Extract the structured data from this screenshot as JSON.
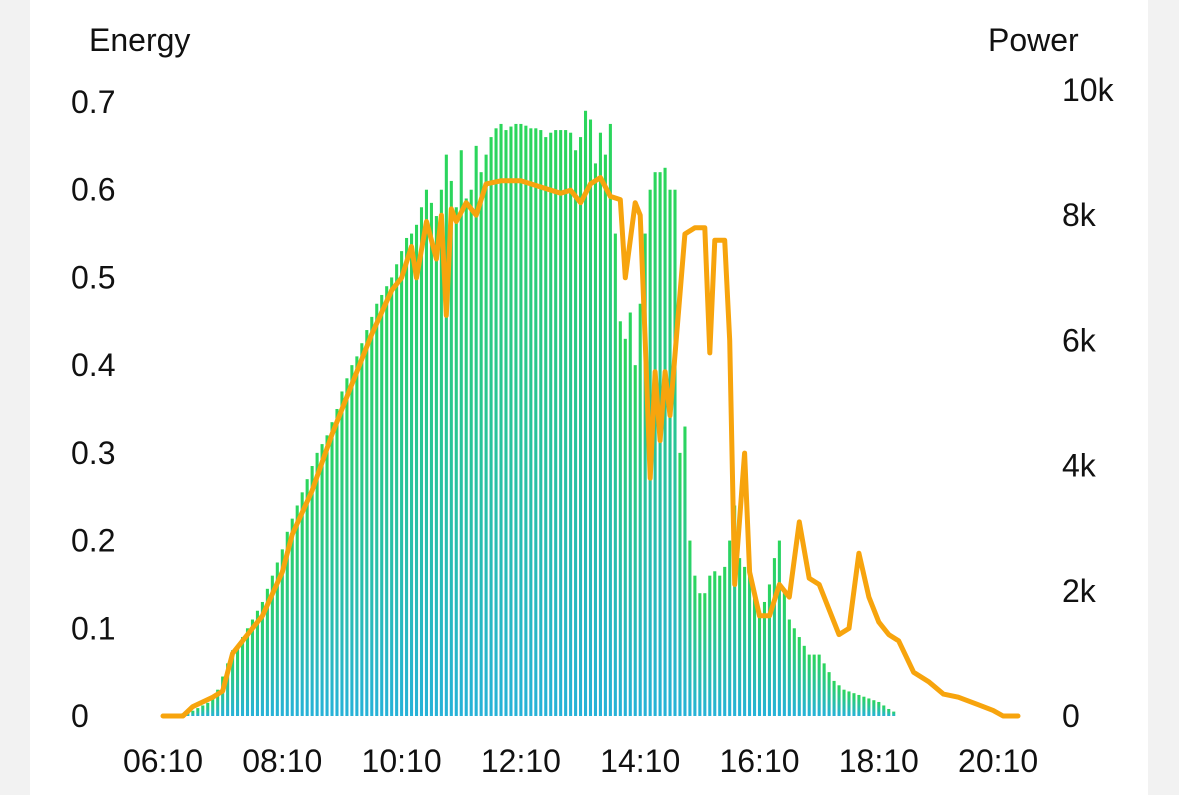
{
  "chart_data": {
    "type": "bar+line",
    "title": "",
    "left_axis_title": "Energy",
    "right_axis_title": "Power",
    "x_ticks": [
      "06:10",
      "08:10",
      "10:10",
      "12:10",
      "14:10",
      "16:10",
      "18:10",
      "20:10"
    ],
    "left_ticks": [
      "0",
      "0.1",
      "0.2",
      "0.3",
      "0.4",
      "0.5",
      "0.6",
      "0.7"
    ],
    "right_ticks": [
      "0",
      "2k",
      "4k",
      "6k",
      "8k",
      "10k"
    ],
    "left_ylim": [
      0,
      0.7
    ],
    "right_ylim": [
      0,
      10000
    ],
    "x_range_minutes": [
      370,
      1230
    ],
    "colors": {
      "bar_top": "#2bd65a",
      "bar_bottom": "#27b2d8",
      "line": "#f7a40d",
      "text": "#111111"
    },
    "series": [
      {
        "kind": "bars",
        "axis": "left",
        "interval_minutes": 5,
        "x_start": "06:10",
        "values": [
          0,
          0,
          0,
          0,
          0.003,
          0.004,
          0.006,
          0.009,
          0.012,
          0.015,
          0.02,
          0.03,
          0.045,
          0.06,
          0.075,
          0.08,
          0.09,
          0.1,
          0.11,
          0.12,
          0.13,
          0.145,
          0.16,
          0.175,
          0.19,
          0.21,
          0.225,
          0.24,
          0.255,
          0.27,
          0.285,
          0.3,
          0.31,
          0.32,
          0.335,
          0.35,
          0.37,
          0.385,
          0.4,
          0.41,
          0.425,
          0.44,
          0.455,
          0.47,
          0.48,
          0.49,
          0.5,
          0.515,
          0.53,
          0.545,
          0.55,
          0.56,
          0.58,
          0.6,
          0.585,
          0.57,
          0.6,
          0.64,
          0.61,
          0.58,
          0.645,
          0.59,
          0.6,
          0.65,
          0.62,
          0.64,
          0.66,
          0.67,
          0.675,
          0.668,
          0.672,
          0.675,
          0.675,
          0.673,
          0.67,
          0.67,
          0.668,
          0.66,
          0.665,
          0.668,
          0.668,
          0.668,
          0.665,
          0.645,
          0.66,
          0.69,
          0.68,
          0.63,
          0.665,
          0.64,
          0.675,
          0.55,
          0.45,
          0.43,
          0.46,
          0.4,
          0.47,
          0.55,
          0.6,
          0.62,
          0.62,
          0.625,
          0.6,
          0.6,
          0.3,
          0.33,
          0.2,
          0.16,
          0.14,
          0.14,
          0.16,
          0.165,
          0.16,
          0.17,
          0.2,
          0.24,
          0.18,
          0.17,
          0.175,
          0.14,
          0.12,
          0.13,
          0.15,
          0.18,
          0.2,
          0.14,
          0.11,
          0.1,
          0.09,
          0.08,
          0.07,
          0.07,
          0.07,
          0.06,
          0.05,
          0.04,
          0.035,
          0.03,
          0.028,
          0.026,
          0.024,
          0.022,
          0.02,
          0.018,
          0.016,
          0.012,
          0.008,
          0.005
        ]
      },
      {
        "kind": "line",
        "axis": "right",
        "points": [
          [
            "06:10",
            0
          ],
          [
            "06:30",
            0
          ],
          [
            "06:40",
            150
          ],
          [
            "07:00",
            300
          ],
          [
            "07:10",
            400
          ],
          [
            "07:20",
            1000
          ],
          [
            "07:30",
            1200
          ],
          [
            "07:50",
            1600
          ],
          [
            "08:10",
            2300
          ],
          [
            "08:20",
            2900
          ],
          [
            "08:40",
            3600
          ],
          [
            "09:00",
            4500
          ],
          [
            "09:20",
            5300
          ],
          [
            "09:40",
            6100
          ],
          [
            "10:00",
            6800
          ],
          [
            "10:10",
            7000
          ],
          [
            "10:20",
            7500
          ],
          [
            "10:25",
            7000
          ],
          [
            "10:35",
            7900
          ],
          [
            "10:45",
            7300
          ],
          [
            "10:50",
            8000
          ],
          [
            "10:55",
            6400
          ],
          [
            "11:00",
            8100
          ],
          [
            "11:05",
            7900
          ],
          [
            "11:15",
            8200
          ],
          [
            "11:25",
            8000
          ],
          [
            "11:35",
            8500
          ],
          [
            "11:50",
            8550
          ],
          [
            "12:10",
            8550
          ],
          [
            "12:30",
            8450
          ],
          [
            "12:50",
            8350
          ],
          [
            "13:00",
            8400
          ],
          [
            "13:10",
            8200
          ],
          [
            "13:20",
            8500
          ],
          [
            "13:30",
            8600
          ],
          [
            "13:40",
            8300
          ],
          [
            "13:50",
            8250
          ],
          [
            "13:55",
            7000
          ],
          [
            "14:05",
            8200
          ],
          [
            "14:10",
            8000
          ],
          [
            "14:15",
            6000
          ],
          [
            "14:20",
            3800
          ],
          [
            "14:25",
            5500
          ],
          [
            "14:30",
            4400
          ],
          [
            "14:35",
            5500
          ],
          [
            "14:40",
            4800
          ],
          [
            "14:55",
            7700
          ],
          [
            "15:05",
            7800
          ],
          [
            "15:15",
            7800
          ],
          [
            "15:20",
            5800
          ],
          [
            "15:25",
            7600
          ],
          [
            "15:35",
            7600
          ],
          [
            "15:40",
            6000
          ],
          [
            "15:45",
            2100
          ],
          [
            "15:55",
            4200
          ],
          [
            "16:00",
            2300
          ],
          [
            "16:10",
            1600
          ],
          [
            "16:20",
            1600
          ],
          [
            "16:30",
            2100
          ],
          [
            "16:40",
            1900
          ],
          [
            "16:50",
            3100
          ],
          [
            "17:00",
            2200
          ],
          [
            "17:10",
            2100
          ],
          [
            "17:20",
            1700
          ],
          [
            "17:30",
            1300
          ],
          [
            "17:40",
            1400
          ],
          [
            "17:50",
            2600
          ],
          [
            "18:00",
            1900
          ],
          [
            "18:10",
            1500
          ],
          [
            "18:20",
            1300
          ],
          [
            "18:30",
            1200
          ],
          [
            "18:45",
            700
          ],
          [
            "19:00",
            550
          ],
          [
            "19:15",
            350
          ],
          [
            "19:30",
            300
          ],
          [
            "19:50",
            180
          ],
          [
            "20:05",
            90
          ],
          [
            "20:15",
            0
          ],
          [
            "20:30",
            0
          ]
        ]
      }
    ]
  }
}
